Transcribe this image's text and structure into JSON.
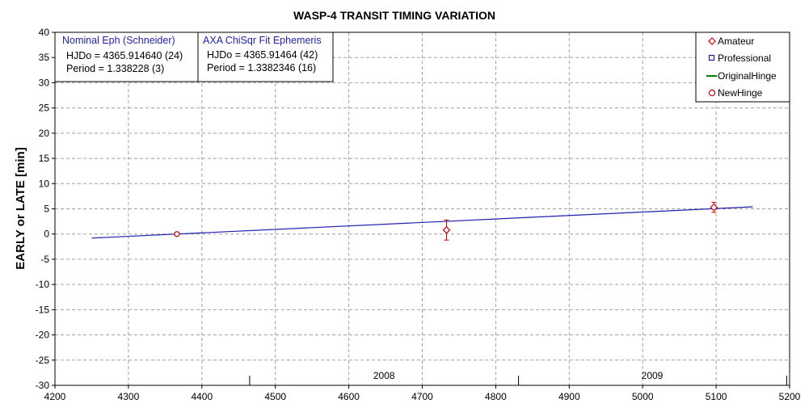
{
  "chart_data": {
    "type": "scatter",
    "title": "WASP-4 TRANSIT TIMING VARIATION",
    "xlabel": "",
    "ylabel": "EARLY or LATE [min]",
    "xlim": [
      4200,
      5200
    ],
    "ylim": [
      -30,
      40
    ],
    "x_ticks": [
      4200,
      4300,
      4400,
      4500,
      4600,
      4700,
      4800,
      4900,
      5000,
      5100,
      5200
    ],
    "y_ticks": [
      40,
      35,
      30,
      25,
      20,
      15,
      10,
      5,
      0,
      -5,
      -10,
      -15,
      -20,
      -25,
      -30
    ],
    "grid": true,
    "legend_position": "top-right",
    "legend": [
      "Amateur",
      "Professional",
      "OriginalHinge",
      "NewHinge"
    ],
    "series": [
      {
        "name": "Amateur",
        "marker": "diamond",
        "color": "#cc0000",
        "points": [
          {
            "x": 4733,
            "y": 0.8,
            "err": 2.0
          },
          {
            "x": 5097,
            "y": 5.3,
            "err": 1.0
          }
        ]
      },
      {
        "name": "Professional",
        "marker": "square",
        "color": "#1f1fb0",
        "points": []
      },
      {
        "name": "OriginalHinge",
        "marker": "line",
        "color": "#008000",
        "points": []
      },
      {
        "name": "NewHinge",
        "marker": "circle",
        "color": "#cc0000",
        "points": [
          {
            "x": 4366,
            "y": 0.0
          }
        ]
      }
    ],
    "fit_line": {
      "color": "#1f1fb0",
      "x": [
        4250,
        5150
      ],
      "y": [
        -0.8,
        5.4
      ]
    },
    "year_markers": [
      {
        "x": 4465
      },
      {
        "x": 4831
      },
      {
        "x": 5196
      }
    ],
    "year_labels": [
      {
        "label": "2008",
        "x": 4648
      },
      {
        "label": "2009",
        "x": 5013
      }
    ],
    "info_boxes": [
      {
        "title": "Nominal Eph (Schneider)",
        "lines": [
          "HJDo = 4365.914640 (24)",
          "Period = 1.338228 (3)"
        ]
      },
      {
        "title": "AXA ChiSqr Fit Ephemeris",
        "lines": [
          "HJDo = 4365.91464 (42)",
          "Period = 1.3382346 (16)"
        ]
      }
    ]
  }
}
